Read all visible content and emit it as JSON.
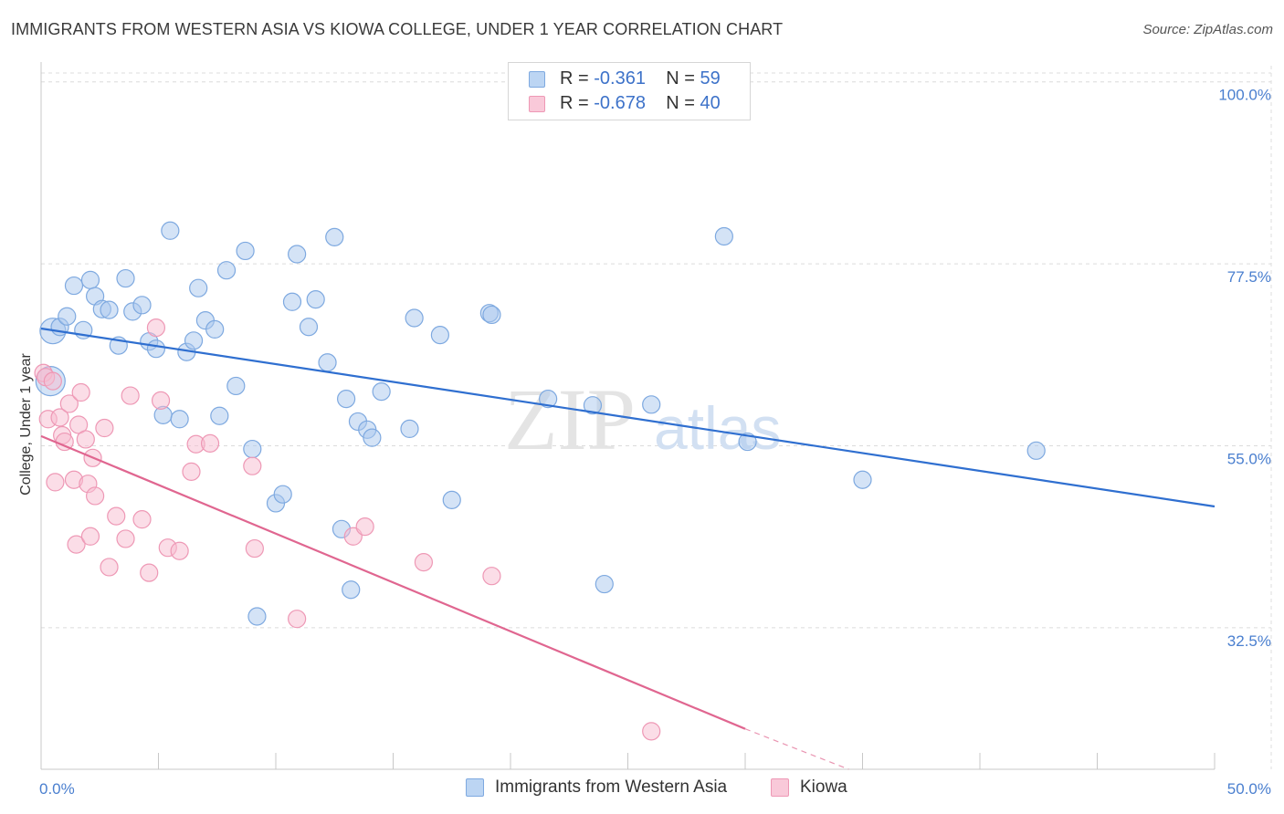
{
  "page": {
    "title": "IMMIGRANTS FROM WESTERN ASIA VS KIOWA COLLEGE, UNDER 1 YEAR CORRELATION CHART",
    "source": "Source: ZipAtlas.com",
    "watermark_zip": "ZIP",
    "watermark_atlas": "atlas"
  },
  "legend": {
    "r_label": "R =",
    "n_label": "N =",
    "series": [
      {
        "r": "-0.361",
        "n": "59"
      },
      {
        "r": "-0.678",
        "n": "40"
      }
    ]
  },
  "chart_data": {
    "type": "scatter",
    "title": "IMMIGRANTS FROM WESTERN ASIA VS KIOWA COLLEGE, UNDER 1 YEAR CORRELATION CHART",
    "xlabel": "",
    "ylabel": "College, Under 1 year",
    "xlim": [
      0,
      50
    ],
    "ylim": [
      15,
      102
    ],
    "x_tick_labels": [
      "0.0%",
      "50.0%"
    ],
    "y_ticks": [
      32.5,
      55.0,
      77.5,
      100.0
    ],
    "y_tick_labels": [
      "32.5%",
      "55.0%",
      "77.5%",
      "100.0%"
    ],
    "grid": true,
    "legend_position": "top-center",
    "series": [
      {
        "name": "Immigrants from Western Asia",
        "color": "#a9c8ee",
        "edge": "#7ea9e0",
        "line_color": "#2f6fd0",
        "trend": [
          [
            0,
            69.5
          ],
          [
            50,
            47.5
          ]
        ],
        "points": [
          [
            0.4,
            63.0
          ],
          [
            0.5,
            69.2
          ],
          [
            0.8,
            69.7
          ],
          [
            1.1,
            71.0
          ],
          [
            1.4,
            74.8
          ],
          [
            1.8,
            69.3
          ],
          [
            2.1,
            75.5
          ],
          [
            2.3,
            73.5
          ],
          [
            2.6,
            71.9
          ],
          [
            2.9,
            71.8
          ],
          [
            3.3,
            67.4
          ],
          [
            3.6,
            75.7
          ],
          [
            3.9,
            71.6
          ],
          [
            4.3,
            72.4
          ],
          [
            4.6,
            67.9
          ],
          [
            4.9,
            67.0
          ],
          [
            5.2,
            58.8
          ],
          [
            5.5,
            81.6
          ],
          [
            5.9,
            58.3
          ],
          [
            6.2,
            66.6
          ],
          [
            6.5,
            68.0
          ],
          [
            6.7,
            74.5
          ],
          [
            7.0,
            70.5
          ],
          [
            7.4,
            69.4
          ],
          [
            7.6,
            58.7
          ],
          [
            7.9,
            76.7
          ],
          [
            8.3,
            62.4
          ],
          [
            8.7,
            79.1
          ],
          [
            9.2,
            33.9
          ],
          [
            9.0,
            54.6
          ],
          [
            10.0,
            47.9
          ],
          [
            10.3,
            49.0
          ],
          [
            10.7,
            72.8
          ],
          [
            10.9,
            78.7
          ],
          [
            11.4,
            69.7
          ],
          [
            11.7,
            73.1
          ],
          [
            12.2,
            65.3
          ],
          [
            12.5,
            80.8
          ],
          [
            12.8,
            44.7
          ],
          [
            13.0,
            60.8
          ],
          [
            13.2,
            37.2
          ],
          [
            13.5,
            58.0
          ],
          [
            13.9,
            57.0
          ],
          [
            14.1,
            56.0
          ],
          [
            14.5,
            61.7
          ],
          [
            15.7,
            57.1
          ],
          [
            15.9,
            70.8
          ],
          [
            17.0,
            68.7
          ],
          [
            17.5,
            48.3
          ],
          [
            19.1,
            71.4
          ],
          [
            19.2,
            71.2
          ],
          [
            21.6,
            60.8
          ],
          [
            23.5,
            60.0
          ],
          [
            24.0,
            37.9
          ],
          [
            26.0,
            60.1
          ],
          [
            29.1,
            80.9
          ],
          [
            30.1,
            55.5
          ],
          [
            35.0,
            50.8
          ],
          [
            42.4,
            54.4
          ]
        ]
      },
      {
        "name": "Kiowa",
        "color": "#f7bcd0",
        "edge": "#ee98b5",
        "line_color": "#e06690",
        "trend": [
          [
            0,
            56.2
          ],
          [
            30.0,
            20.0
          ]
        ],
        "trend_dashed": [
          [
            30.0,
            20.0
          ],
          [
            45.0,
            3.0
          ]
        ],
        "points": [
          [
            0.1,
            64.0
          ],
          [
            0.2,
            63.5
          ],
          [
            0.3,
            58.3
          ],
          [
            0.5,
            63.0
          ],
          [
            0.6,
            50.5
          ],
          [
            0.8,
            58.5
          ],
          [
            0.9,
            56.3
          ],
          [
            1.0,
            55.5
          ],
          [
            1.2,
            60.2
          ],
          [
            1.4,
            50.8
          ],
          [
            1.5,
            42.8
          ],
          [
            1.6,
            57.6
          ],
          [
            1.7,
            61.6
          ],
          [
            1.9,
            55.8
          ],
          [
            2.0,
            50.3
          ],
          [
            2.1,
            43.8
          ],
          [
            2.2,
            53.5
          ],
          [
            2.3,
            48.8
          ],
          [
            2.7,
            57.2
          ],
          [
            2.9,
            40.0
          ],
          [
            3.2,
            46.3
          ],
          [
            3.6,
            43.5
          ],
          [
            3.8,
            61.2
          ],
          [
            4.3,
            45.9
          ],
          [
            4.6,
            39.3
          ],
          [
            4.9,
            69.6
          ],
          [
            5.1,
            60.6
          ],
          [
            5.4,
            42.4
          ],
          [
            5.9,
            42.0
          ],
          [
            6.4,
            51.8
          ],
          [
            6.6,
            55.2
          ],
          [
            7.2,
            55.3
          ],
          [
            9.0,
            52.5
          ],
          [
            9.1,
            42.3
          ],
          [
            10.9,
            33.6
          ],
          [
            13.3,
            43.8
          ],
          [
            13.8,
            45.0
          ],
          [
            16.3,
            40.6
          ],
          [
            19.2,
            38.9
          ],
          [
            26.0,
            19.7
          ]
        ]
      }
    ]
  }
}
